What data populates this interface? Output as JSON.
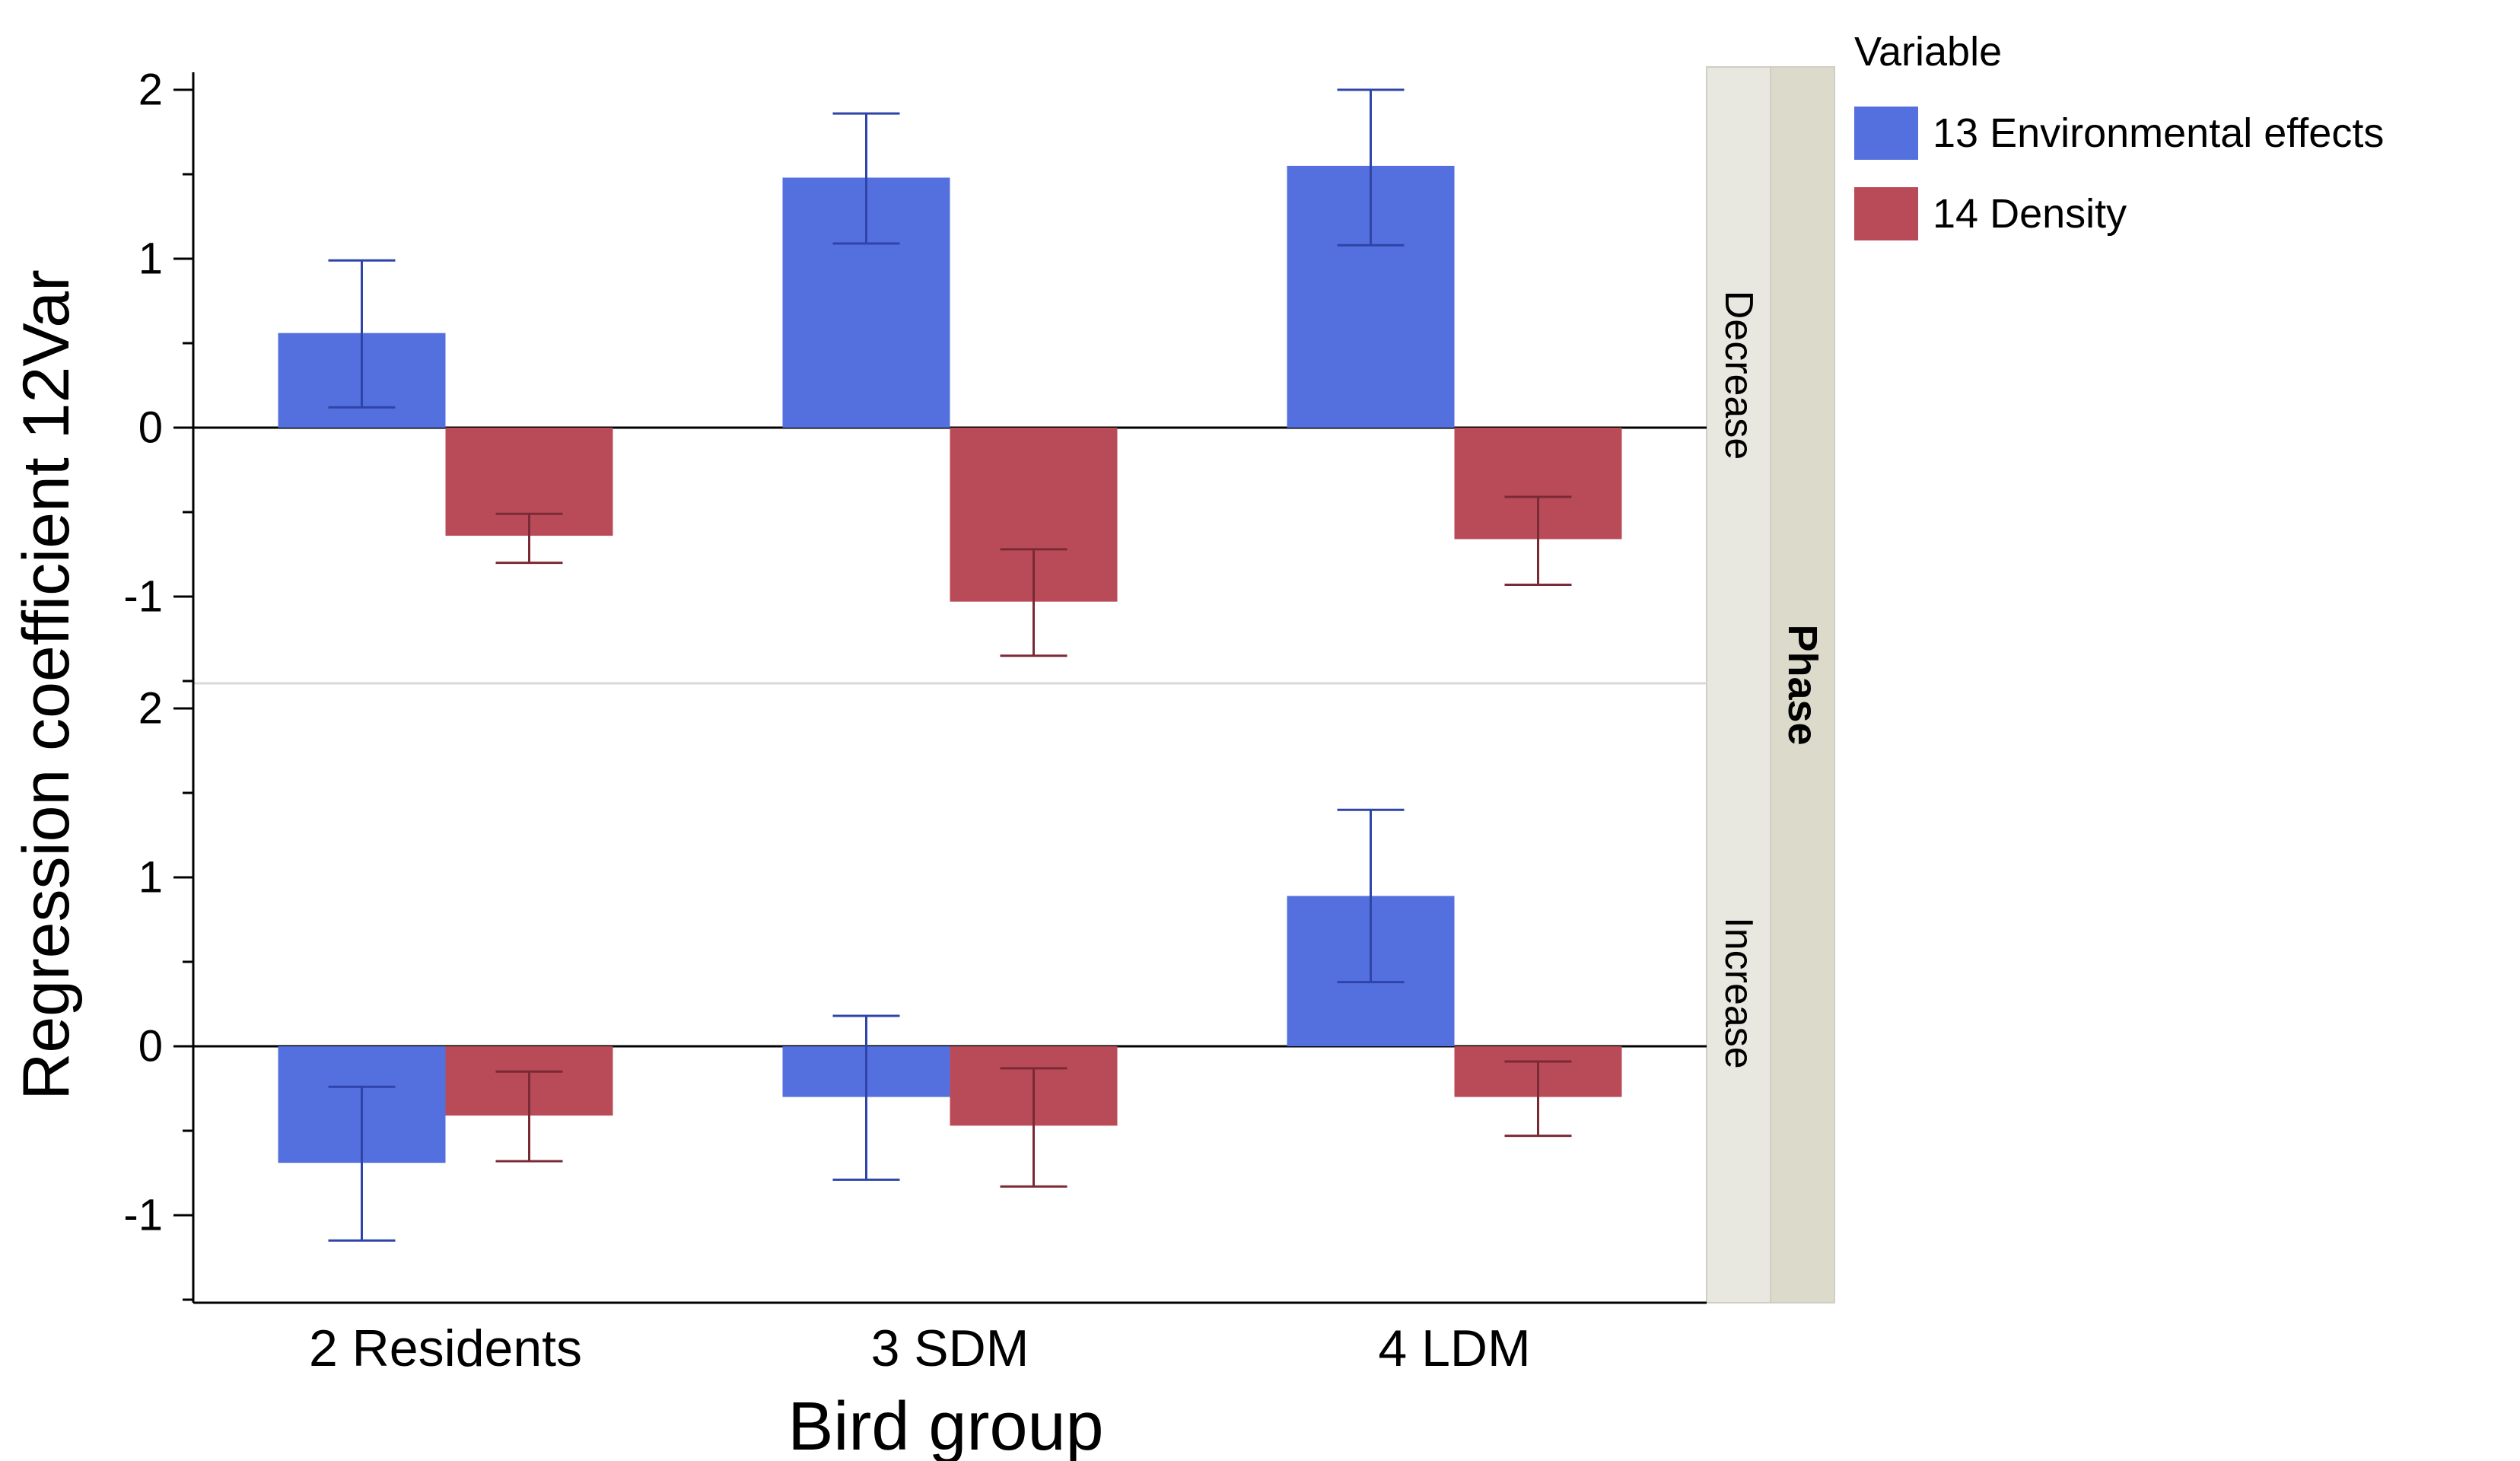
{
  "chart_data": {
    "type": "bar",
    "title": "",
    "xlabel": "Bird group",
    "ylabel": "Regression coefficient 12Var",
    "categories": [
      "2 Residents",
      "3 SDM",
      "4 LDM"
    ],
    "facet_title": "Phase",
    "legend": {
      "title": "Variable",
      "position": "top-right",
      "items": [
        {
          "name": "13 Environmental effects",
          "color": "#5470de"
        },
        {
          "name": "14 Density",
          "color": "#b94b58"
        }
      ]
    },
    "panels": [
      {
        "label": "Decrease",
        "ylim": [
          -1.5,
          2.1
        ],
        "yticks": [
          {
            "v": 2,
            "label": "2"
          },
          {
            "v": 1,
            "label": "1"
          },
          {
            "v": 0,
            "label": "0"
          },
          {
            "v": -1,
            "label": "-1"
          }
        ],
        "series": [
          {
            "name": "13 Environmental effects",
            "values": [
              0.56,
              1.48,
              1.55
            ],
            "err_low": [
              0.12,
              1.09,
              1.08
            ],
            "err_high": [
              0.99,
              1.86,
              2.0
            ]
          },
          {
            "name": "14 Density",
            "values": [
              -0.64,
              -1.03,
              -0.66
            ],
            "err_low": [
              -0.8,
              -1.35,
              -0.93
            ],
            "err_high": [
              -0.51,
              -0.72,
              -0.41
            ]
          }
        ]
      },
      {
        "label": "Increase",
        "ylim": [
          -1.5,
          2.1
        ],
        "yticks": [
          {
            "v": 2,
            "label": "2"
          },
          {
            "v": 1,
            "label": "1"
          },
          {
            "v": 0,
            "label": "0"
          },
          {
            "v": -1,
            "label": "-1"
          }
        ],
        "series": [
          {
            "name": "13 Environmental effects",
            "values": [
              -0.69,
              -0.3,
              0.89
            ],
            "err_low": [
              -1.15,
              -0.79,
              0.38
            ],
            "err_high": [
              -0.24,
              0.18,
              1.4
            ]
          },
          {
            "name": "14 Density",
            "values": [
              -0.41,
              -0.47,
              -0.3
            ],
            "err_low": [
              -0.68,
              -0.83,
              -0.53
            ],
            "err_high": [
              -0.15,
              -0.13,
              -0.09
            ]
          }
        ]
      }
    ]
  }
}
